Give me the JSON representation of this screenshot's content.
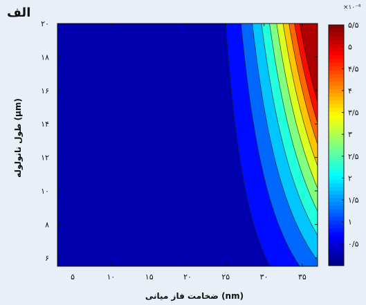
{
  "figure_label": "الف",
  "chart_data": {
    "type": "heatmap",
    "subtype": "filled-contour",
    "title": "",
    "xlabel": "ضخامت فاز میانی (nm)",
    "ylabel": "طول نانولوله (µm)",
    "xlim": [
      3,
      37
    ],
    "ylim": [
      5.5,
      20
    ],
    "x_ticks": [
      5,
      10,
      15,
      20,
      25,
      30,
      35
    ],
    "x_tick_labels": [
      "۵",
      "۱۰",
      "۱۵",
      "۲۰",
      "۲۵",
      "۳۰",
      "۳۵"
    ],
    "y_ticks": [
      6,
      8,
      10,
      12,
      14,
      16,
      18,
      20
    ],
    "y_tick_labels": [
      "۶",
      "۸",
      "۱۰",
      "۱۲",
      "۱۴",
      "۱۶",
      "۱۸",
      "۲۰"
    ],
    "colorbar": {
      "range": [
        0,
        5.5
      ],
      "ticks": [
        0.5,
        1,
        1.5,
        2,
        2.5,
        3,
        3.5,
        4,
        4.5,
        5,
        5.5
      ],
      "tick_labels": [
        "۰/۵",
        "۱",
        "۱/۵",
        "۲",
        "۲/۵",
        "۳",
        "۳/۵",
        "۴",
        "۴/۵",
        "۵",
        "۵/۵"
      ],
      "multiplier_label": "×۱۰⁻⁶",
      "colormap": "jet"
    },
    "contour_levels": [
      0.5,
      1.0,
      1.5,
      2.0,
      2.5,
      3.0,
      3.5,
      4.0,
      4.5,
      5.0
    ]
  }
}
